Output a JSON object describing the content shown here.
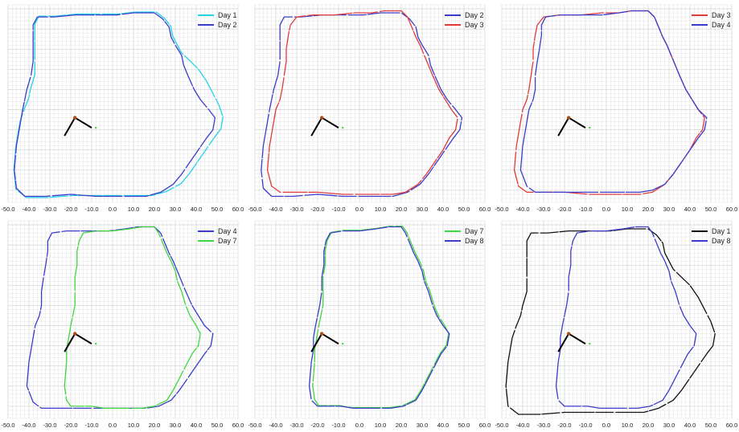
{
  "colors": {
    "Day 1": "#22d3e6",
    "Day 2": "#3b3bcc",
    "Day 3": "#e03a3a",
    "Day 4": "#3b3bcc",
    "Day 7": "#3fd63f",
    "Day 8": "#3b3bcc",
    "Day 1 black": "#111111",
    "robot": "#000000",
    "robot_center": "#b04a10",
    "robot_tip": "#3fd63f",
    "grid": "#d9d9d9"
  },
  "chart_data": [
    {
      "type": "line",
      "xlim": [
        -50,
        60
      ],
      "x_ticks": [
        "-50.0",
        "-40.0",
        "-30.0",
        "-20.0",
        "-10.0",
        "0.0",
        "10.0",
        "20.0",
        "30.0",
        "40.0",
        "50.0",
        "60.0"
      ],
      "grid": true,
      "legend_position": "top-right",
      "series": [
        {
          "name": "Day 1",
          "color": "#22d3e6",
          "shape": "day1",
          "offset": 0.8
        },
        {
          "name": "Day 2",
          "color": "#3b3bcc",
          "shape": "day2",
          "offset": 0
        }
      ]
    },
    {
      "type": "line",
      "xlim": [
        -50,
        60
      ],
      "x_ticks": [
        "-50.0",
        "-40.0",
        "-30.0",
        "-20.0",
        "-10.0",
        "0.0",
        "10.0",
        "20.0",
        "30.0",
        "40.0",
        "50.0",
        "60.0"
      ],
      "grid": true,
      "legend_position": "top-right",
      "series": [
        {
          "name": "Day 2",
          "color": "#3b3bcc",
          "shape": "day2",
          "offset": 0
        },
        {
          "name": "Day 3",
          "color": "#e03a3a",
          "shape": "day3",
          "offset": 0
        }
      ]
    },
    {
      "type": "line",
      "xlim": [
        -50,
        60
      ],
      "x_ticks": [
        "-50.0",
        "-40.0",
        "-30.0",
        "-20.0",
        "-10.0",
        "0.0",
        "10.0",
        "20.0",
        "30.0",
        "40.0",
        "50.0",
        "60.0"
      ],
      "grid": true,
      "legend_position": "top-right",
      "series": [
        {
          "name": "Day 3",
          "color": "#e03a3a",
          "shape": "day3",
          "offset": 0
        },
        {
          "name": "Day 4",
          "color": "#3b3bcc",
          "shape": "day4",
          "offset": 0
        }
      ]
    },
    {
      "type": "line",
      "xlim": [
        -50,
        60
      ],
      "x_ticks": [
        "-50.0",
        "-40.0",
        "-30.0",
        "-20.0",
        "-10.0",
        "0.0",
        "10.0",
        "20.0",
        "30.0",
        "40.0",
        "50.0",
        "60.0"
      ],
      "grid": true,
      "legend_position": "top-right",
      "series": [
        {
          "name": "Day 4",
          "color": "#3b3bcc",
          "shape": "day4",
          "offset": 0
        },
        {
          "name": "Day 7",
          "color": "#3fd63f",
          "shape": "day7",
          "offset": 0
        }
      ]
    },
    {
      "type": "line",
      "xlim": [
        -50,
        60
      ],
      "x_ticks": [
        "-50.0",
        "-40.0",
        "-30.0",
        "-20.0",
        "-10.0",
        "0.0",
        "10.0",
        "20.0",
        "30.0",
        "40.0",
        "50.0",
        "60.0"
      ],
      "grid": true,
      "legend_position": "top-right",
      "series": [
        {
          "name": "Day 7",
          "color": "#3fd63f",
          "shape": "day7",
          "offset": 0.6
        },
        {
          "name": "Day 8",
          "color": "#3b3bcc",
          "shape": "day8",
          "offset": 0
        }
      ]
    },
    {
      "type": "line",
      "xlim": [
        -50,
        60
      ],
      "x_ticks": [
        "-50.0",
        "-40.0",
        "-30.0",
        "-20.0",
        "-10.0",
        "0.0",
        "10.0",
        "20.0",
        "30.0",
        "40.0",
        "50.0",
        "60.0"
      ],
      "grid": true,
      "legend_position": "top-right",
      "series": [
        {
          "name": "Day 1",
          "color": "#111111",
          "shape": "day1",
          "offset": 0
        },
        {
          "name": "Day 8",
          "color": "#3b3bcc",
          "shape": "day8",
          "offset": 0
        }
      ]
    }
  ],
  "shapes": {
    "day1": [
      [
        -47,
        -8
      ],
      [
        -46,
        -2
      ],
      [
        -45,
        4
      ],
      [
        -43,
        10
      ],
      [
        -41,
        15
      ],
      [
        -40,
        20
      ],
      [
        -38,
        27
      ],
      [
        -38,
        34
      ],
      [
        -38,
        40
      ],
      [
        -38,
        47
      ],
      [
        -38,
        52
      ],
      [
        -36,
        56
      ],
      [
        -28,
        56
      ],
      [
        -18,
        57
      ],
      [
        -8,
        57
      ],
      [
        2,
        57
      ],
      [
        10,
        58
      ],
      [
        20,
        58
      ],
      [
        24,
        55
      ],
      [
        27,
        51
      ],
      [
        28,
        46
      ],
      [
        30,
        42
      ],
      [
        32,
        38
      ],
      [
        36,
        34
      ],
      [
        40,
        30
      ],
      [
        44,
        24
      ],
      [
        47,
        18
      ],
      [
        50,
        12
      ],
      [
        52,
        6
      ],
      [
        51,
        0
      ],
      [
        48,
        -4
      ],
      [
        44,
        -10
      ],
      [
        40,
        -16
      ],
      [
        36,
        -22
      ],
      [
        32,
        -27
      ],
      [
        25,
        -31
      ],
      [
        18,
        -33
      ],
      [
        10,
        -33
      ],
      [
        2,
        -33
      ],
      [
        -8,
        -33
      ],
      [
        -20,
        -33
      ],
      [
        -32,
        -34
      ],
      [
        -42,
        -34
      ],
      [
        -47,
        -30
      ],
      [
        -48,
        -20
      ],
      [
        -47,
        -8
      ]
    ],
    "day2": [
      [
        -46,
        -8
      ],
      [
        -45,
        -2
      ],
      [
        -44,
        4
      ],
      [
        -43,
        10
      ],
      [
        -42,
        15
      ],
      [
        -41,
        20
      ],
      [
        -39,
        27
      ],
      [
        -38,
        34
      ],
      [
        -38,
        40
      ],
      [
        -38,
        47
      ],
      [
        -38,
        52
      ],
      [
        -36,
        56
      ],
      [
        -28,
        56
      ],
      [
        -18,
        57
      ],
      [
        -8,
        57
      ],
      [
        2,
        57
      ],
      [
        10,
        58
      ],
      [
        20,
        58
      ],
      [
        24,
        55
      ],
      [
        27,
        51
      ],
      [
        28,
        46
      ],
      [
        30,
        42
      ],
      [
        33,
        37
      ],
      [
        34,
        32
      ],
      [
        36,
        27
      ],
      [
        39,
        20
      ],
      [
        42,
        15
      ],
      [
        46,
        10
      ],
      [
        49,
        6
      ],
      [
        48,
        0
      ],
      [
        45,
        -4
      ],
      [
        41,
        -10
      ],
      [
        37,
        -16
      ],
      [
        33,
        -22
      ],
      [
        29,
        -27
      ],
      [
        23,
        -31
      ],
      [
        16,
        -33
      ],
      [
        8,
        -33
      ],
      [
        0,
        -33
      ],
      [
        -8,
        -33
      ],
      [
        -20,
        -32
      ],
      [
        -32,
        -33
      ],
      [
        -42,
        -33
      ],
      [
        -46,
        -29
      ],
      [
        -47,
        -20
      ],
      [
        -46,
        -8
      ]
    ],
    "day3": [
      [
        -43,
        -8
      ],
      [
        -42,
        -2
      ],
      [
        -41,
        4
      ],
      [
        -40,
        10
      ],
      [
        -38,
        15
      ],
      [
        -37,
        20
      ],
      [
        -36,
        27
      ],
      [
        -35,
        34
      ],
      [
        -35,
        40
      ],
      [
        -34,
        47
      ],
      [
        -33,
        52
      ],
      [
        -30,
        56
      ],
      [
        -22,
        57
      ],
      [
        -12,
        57
      ],
      [
        -2,
        58
      ],
      [
        6,
        58
      ],
      [
        12,
        59
      ],
      [
        20,
        59
      ],
      [
        23,
        56
      ],
      [
        25,
        51
      ],
      [
        27,
        46
      ],
      [
        29,
        42
      ],
      [
        31,
        37
      ],
      [
        33,
        32
      ],
      [
        35,
        27
      ],
      [
        38,
        20
      ],
      [
        41,
        15
      ],
      [
        44,
        10
      ],
      [
        47,
        6
      ],
      [
        46,
        0
      ],
      [
        43,
        -4
      ],
      [
        40,
        -10
      ],
      [
        36,
        -16
      ],
      [
        32,
        -22
      ],
      [
        28,
        -27
      ],
      [
        22,
        -31
      ],
      [
        16,
        -32
      ],
      [
        8,
        -32
      ],
      [
        0,
        -32
      ],
      [
        -8,
        -32
      ],
      [
        -20,
        -31
      ],
      [
        -30,
        -31
      ],
      [
        -38,
        -31
      ],
      [
        -42,
        -28
      ],
      [
        -44,
        -20
      ],
      [
        -43,
        -8
      ]
    ],
    "day4": [
      [
        -40,
        -8
      ],
      [
        -39,
        -2
      ],
      [
        -38,
        4
      ],
      [
        -37,
        10
      ],
      [
        -35,
        15
      ],
      [
        -34,
        20
      ],
      [
        -34,
        27
      ],
      [
        -33,
        34
      ],
      [
        -32,
        40
      ],
      [
        -31,
        47
      ],
      [
        -31,
        52
      ],
      [
        -29,
        56
      ],
      [
        -22,
        57
      ],
      [
        -12,
        57
      ],
      [
        -2,
        57
      ],
      [
        6,
        58
      ],
      [
        12,
        59
      ],
      [
        20,
        59
      ],
      [
        23,
        56
      ],
      [
        25,
        51
      ],
      [
        27,
        46
      ],
      [
        29,
        42
      ],
      [
        31,
        37
      ],
      [
        33,
        32
      ],
      [
        35,
        27
      ],
      [
        38,
        20
      ],
      [
        41,
        15
      ],
      [
        44,
        10
      ],
      [
        48,
        6
      ],
      [
        47,
        0
      ],
      [
        44,
        -4
      ],
      [
        40,
        -10
      ],
      [
        36,
        -16
      ],
      [
        32,
        -22
      ],
      [
        28,
        -27
      ],
      [
        22,
        -30
      ],
      [
        16,
        -31
      ],
      [
        8,
        -31
      ],
      [
        0,
        -31
      ],
      [
        -8,
        -31
      ],
      [
        -18,
        -31
      ],
      [
        -26,
        -31
      ],
      [
        -34,
        -31
      ],
      [
        -38,
        -28
      ],
      [
        -41,
        -20
      ],
      [
        -40,
        -8
      ]
    ],
    "day7": [
      [
        -22,
        -8
      ],
      [
        -22,
        -2
      ],
      [
        -21,
        4
      ],
      [
        -20,
        10
      ],
      [
        -19,
        15
      ],
      [
        -18,
        20
      ],
      [
        -18,
        27
      ],
      [
        -18,
        34
      ],
      [
        -17,
        40
      ],
      [
        -17,
        47
      ],
      [
        -16,
        52
      ],
      [
        -14,
        56
      ],
      [
        -8,
        57
      ],
      [
        0,
        57
      ],
      [
        8,
        58
      ],
      [
        14,
        59
      ],
      [
        20,
        59
      ],
      [
        22,
        56
      ],
      [
        24,
        51
      ],
      [
        26,
        46
      ],
      [
        28,
        42
      ],
      [
        30,
        37
      ],
      [
        31,
        32
      ],
      [
        33,
        27
      ],
      [
        35,
        20
      ],
      [
        37,
        15
      ],
      [
        40,
        10
      ],
      [
        42,
        6
      ],
      [
        41,
        0
      ],
      [
        38,
        -4
      ],
      [
        35,
        -10
      ],
      [
        32,
        -16
      ],
      [
        29,
        -22
      ],
      [
        26,
        -27
      ],
      [
        20,
        -30
      ],
      [
        14,
        -31
      ],
      [
        8,
        -31
      ],
      [
        2,
        -31
      ],
      [
        -4,
        -31
      ],
      [
        -10,
        -30
      ],
      [
        -16,
        -30
      ],
      [
        -20,
        -30
      ],
      [
        -22,
        -27
      ],
      [
        -23,
        -20
      ],
      [
        -22,
        -8
      ]
    ],
    "day8": [
      [
        -23,
        -8
      ],
      [
        -22,
        -2
      ],
      [
        -22,
        4
      ],
      [
        -21,
        10
      ],
      [
        -20,
        15
      ],
      [
        -19,
        20
      ],
      [
        -18,
        27
      ],
      [
        -18,
        34
      ],
      [
        -17,
        40
      ],
      [
        -17,
        47
      ],
      [
        -16,
        52
      ],
      [
        -14,
        56
      ],
      [
        -8,
        57
      ],
      [
        0,
        57
      ],
      [
        8,
        58
      ],
      [
        14,
        59
      ],
      [
        20,
        59
      ],
      [
        22,
        56
      ],
      [
        24,
        51
      ],
      [
        26,
        46
      ],
      [
        28,
        42
      ],
      [
        30,
        37
      ],
      [
        31,
        32
      ],
      [
        33,
        27
      ],
      [
        35,
        20
      ],
      [
        37,
        15
      ],
      [
        40,
        10
      ],
      [
        43,
        6
      ],
      [
        42,
        0
      ],
      [
        39,
        -4
      ],
      [
        36,
        -10
      ],
      [
        33,
        -16
      ],
      [
        30,
        -22
      ],
      [
        27,
        -27
      ],
      [
        21,
        -30
      ],
      [
        15,
        -31
      ],
      [
        9,
        -31
      ],
      [
        3,
        -31
      ],
      [
        -3,
        -31
      ],
      [
        -9,
        -30
      ],
      [
        -15,
        -30
      ],
      [
        -20,
        -30
      ],
      [
        -23,
        -27
      ],
      [
        -24,
        -20
      ],
      [
        -23,
        -8
      ]
    ]
  }
}
